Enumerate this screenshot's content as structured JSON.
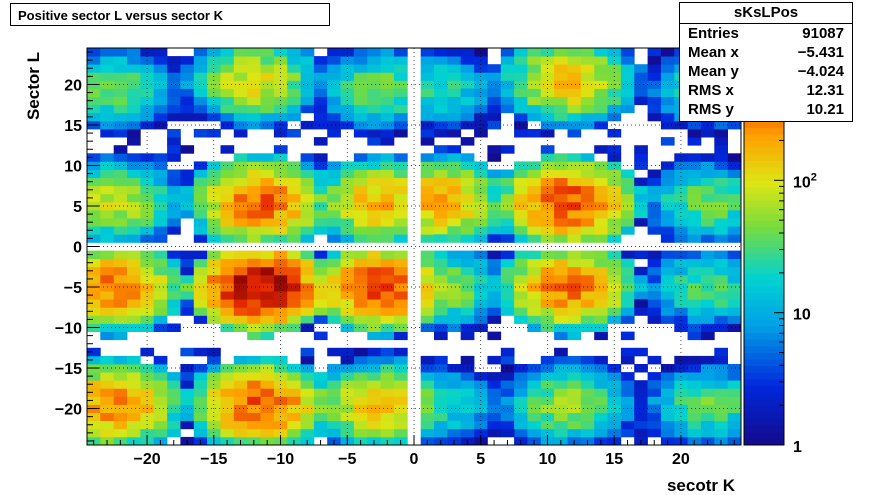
{
  "title": "Positive sector L versus sector K",
  "stats": {
    "name": "sKsLPos",
    "rows": [
      {
        "label": "Entries",
        "value": "91087"
      },
      {
        "label": "Mean x",
        "value": "−5.431"
      },
      {
        "label": "Mean y",
        "value": "−4.024"
      },
      {
        "label": "RMS x",
        "value": "12.31"
      },
      {
        "label": "RMS y",
        "value": "10.21"
      }
    ]
  },
  "chart_data": {
    "type": "heatmap",
    "title": "Positive sector L versus sector K",
    "xlabel": "secotr K",
    "ylabel": "Sector L",
    "xlim": [
      -24.5,
      24.5
    ],
    "ylim": [
      -24.5,
      24.5
    ],
    "zscale": "log",
    "zlim": [
      1,
      1000
    ],
    "grid": true,
    "x_ticks": [
      -20,
      -15,
      -10,
      -5,
      0,
      5,
      10,
      15,
      20
    ],
    "x_tick_labels": [
      "−20",
      "−15",
      "−10",
      "−5",
      "0",
      "5",
      "10",
      "15",
      "20"
    ],
    "y_ticks": [
      -20,
      -15,
      -10,
      -5,
      0,
      5,
      10,
      15,
      20
    ],
    "y_tick_labels": [
      "−20",
      "−15",
      "−10",
      "−5",
      "0",
      "5",
      "10",
      "15",
      "20"
    ],
    "z_ticks": [
      1,
      10,
      100
    ],
    "z_tick_labels": [
      "1",
      "10",
      "10²"
    ],
    "clusters_note_free": true,
    "clusters": [
      {
        "kx": -22.5,
        "ly": 19.5,
        "peak": 40
      },
      {
        "kx": -12,
        "ly": 20.5,
        "peak": 110
      },
      {
        "kx": -2.5,
        "ly": 19.5,
        "peak": 45
      },
      {
        "kx": 2,
        "ly": 19.5,
        "peak": 25
      },
      {
        "kx": 11.5,
        "ly": 20.5,
        "peak": 150
      },
      {
        "kx": 22,
        "ly": 19.5,
        "peak": 30
      },
      {
        "kx": -22.5,
        "ly": 5.5,
        "peak": 90
      },
      {
        "kx": -11.5,
        "ly": 5.5,
        "peak": 350
      },
      {
        "kx": -2.5,
        "ly": 5.5,
        "peak": 180
      },
      {
        "kx": 2,
        "ly": 5.5,
        "peak": 200
      },
      {
        "kx": 11.5,
        "ly": 5.5,
        "peak": 450
      },
      {
        "kx": 22,
        "ly": 5.5,
        "peak": 45
      },
      {
        "kx": -22.5,
        "ly": -5,
        "peak": 300
      },
      {
        "kx": -11.5,
        "ly": -5,
        "peak": 900
      },
      {
        "kx": -2.5,
        "ly": -5,
        "peak": 450
      },
      {
        "kx": 2,
        "ly": -5,
        "peak": 60
      },
      {
        "kx": 11.5,
        "ly": -5,
        "peak": 320
      },
      {
        "kx": 22,
        "ly": -5,
        "peak": 35
      },
      {
        "kx": -22.5,
        "ly": -19.5,
        "peak": 280
      },
      {
        "kx": -11.5,
        "ly": -19.5,
        "peak": 400
      },
      {
        "kx": -2.5,
        "ly": -19.5,
        "peak": 150
      },
      {
        "kx": 2,
        "ly": -19.5,
        "peak": 25
      },
      {
        "kx": 11.5,
        "ly": -19.5,
        "peak": 60
      },
      {
        "kx": 22,
        "ly": -19.5,
        "peak": 40
      }
    ]
  }
}
